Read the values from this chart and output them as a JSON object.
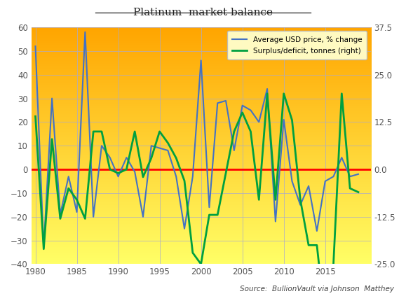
{
  "title": "Platinum  market balance",
  "source_text": "Source:  BullionVault via Johnson  Matthey",
  "years": [
    1980,
    1981,
    1982,
    1983,
    1984,
    1985,
    1986,
    1987,
    1988,
    1989,
    1990,
    1991,
    1992,
    1993,
    1994,
    1995,
    1996,
    1997,
    1998,
    1999,
    2000,
    2001,
    2002,
    2003,
    2004,
    2005,
    2006,
    2007,
    2008,
    2009,
    2010,
    2011,
    2012,
    2013,
    2014,
    2015,
    2016,
    2017,
    2018,
    2019
  ],
  "price_change": [
    52,
    -33,
    30,
    -19,
    -3,
    -18,
    58,
    -20,
    10,
    5,
    -3,
    5,
    -1,
    -20,
    10,
    9,
    8,
    -3,
    -25,
    -3,
    46,
    -16,
    28,
    29,
    8,
    27,
    25,
    20,
    34,
    -22,
    21,
    -5,
    -15,
    -7,
    -26,
    -5,
    -3,
    5,
    -3,
    -2
  ],
  "surplus_deficit": [
    14,
    -21,
    8,
    -13,
    -5,
    -8,
    -13,
    10,
    10,
    0,
    -1,
    0,
    10,
    -2,
    3,
    10,
    7,
    3,
    -3,
    -22,
    -25,
    -12,
    -12,
    -1,
    10,
    15,
    10,
    -8,
    20,
    -8,
    20,
    13,
    -8,
    -20,
    -20,
    -40,
    -25,
    20,
    -5,
    -6
  ],
  "left_ylim": [
    -40,
    60
  ],
  "right_ylim": [
    -25,
    37.5
  ],
  "left_yticks": [
    -40,
    -30,
    -20,
    -10,
    0,
    10,
    20,
    30,
    40,
    50,
    60
  ],
  "right_yticks": [
    -25.0,
    -12.5,
    0.0,
    12.5,
    25.0,
    37.5
  ],
  "xticks": [
    1980,
    1985,
    1990,
    1995,
    2000,
    2005,
    2010,
    2015
  ],
  "xlim": [
    1979.5,
    2020.5
  ],
  "price_color": "#4472C4",
  "surplus_color": "#00A040",
  "zero_line_color": "#FF0000",
  "grid_color": "#AAAACC",
  "bg_color_bottom": "#FFFF66",
  "bg_color_top": "#FFA500",
  "legend_label_price": "Average USD price, % change",
  "legend_label_surplus": "Surplus/deficit, tonnes (right)"
}
